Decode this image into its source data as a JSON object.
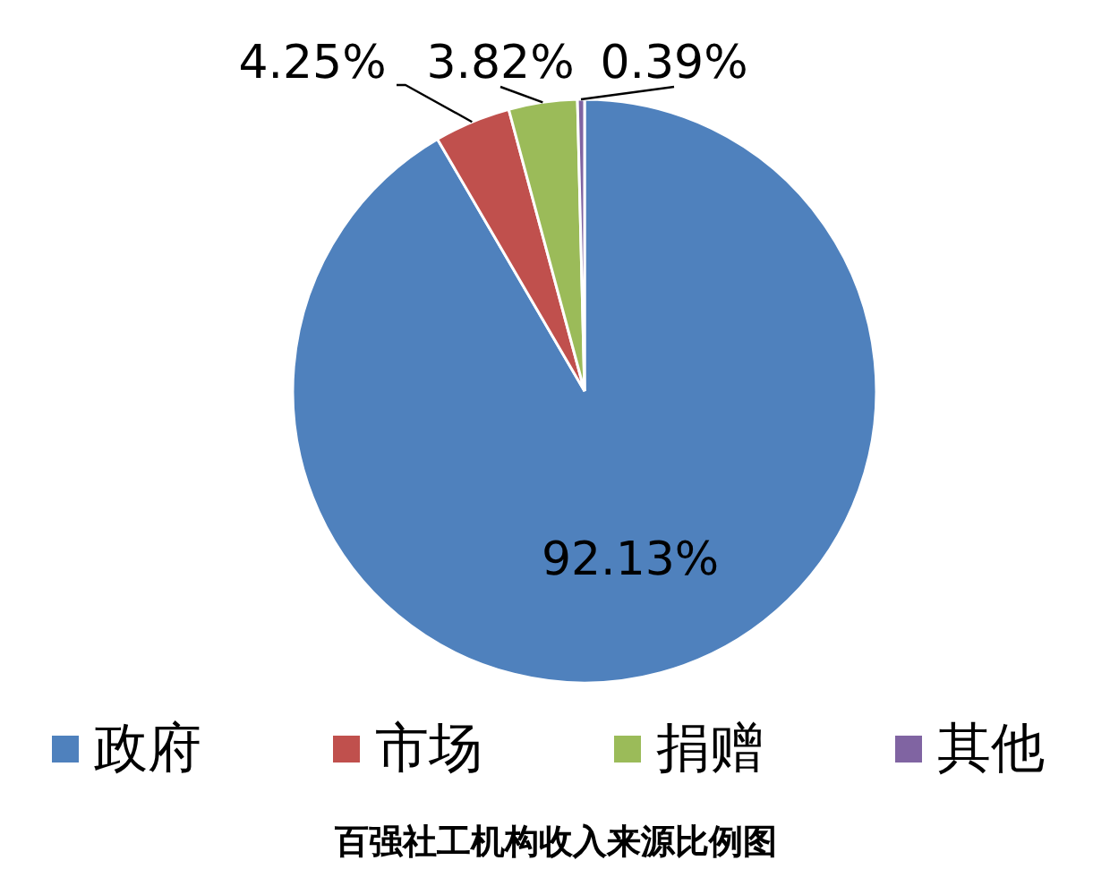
{
  "chart_data": {
    "type": "pie",
    "title": "百强社工机构收入来源比例图",
    "categories": [
      "政府",
      "市场",
      "捐赠",
      "其他"
    ],
    "values": [
      92.13,
      4.25,
      3.82,
      0.39
    ],
    "colors": [
      "#4f81bd",
      "#c0504d",
      "#9bbb59",
      "#8064a2"
    ],
    "value_labels": [
      "92.13%",
      "4.25%",
      "3.82%",
      "0.39%"
    ],
    "legend": "bottom"
  }
}
